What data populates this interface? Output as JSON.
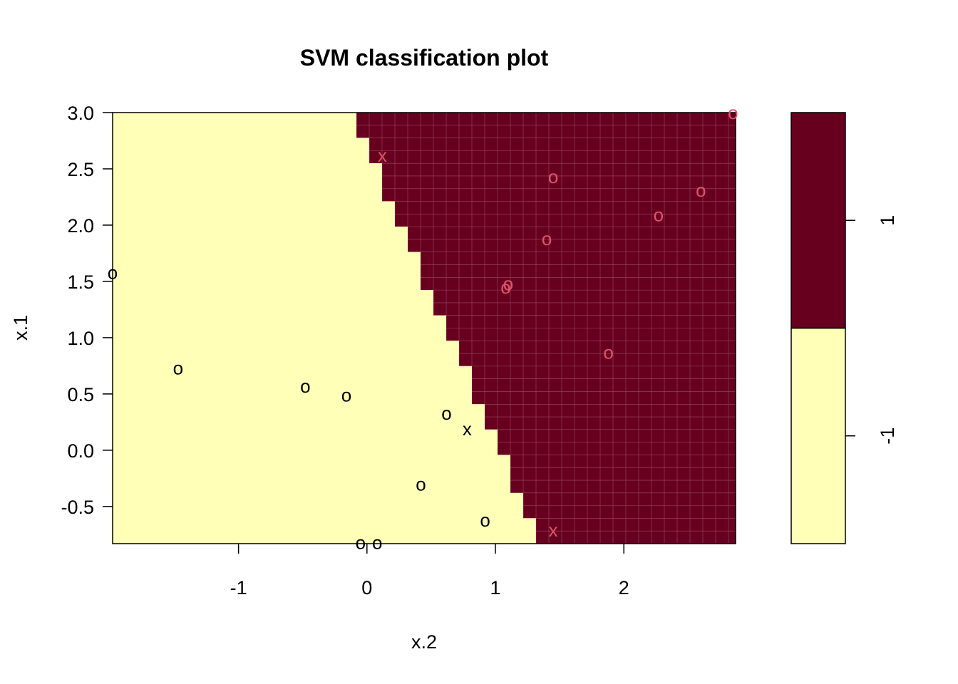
{
  "chart_data": {
    "type": "scatter",
    "title": "SVM classification plot",
    "xlabel": "x.2",
    "ylabel": "x.1",
    "xlim": [
      -1.98,
      2.87
    ],
    "ylim": [
      -0.83,
      3.0
    ],
    "x_ticks": [
      {
        "v": -1,
        "label": "-1"
      },
      {
        "v": 0,
        "label": "0"
      },
      {
        "v": 1,
        "label": "1"
      },
      {
        "v": 2,
        "label": "2"
      }
    ],
    "y_ticks": [
      {
        "v": -0.5,
        "label": "-0.5"
      },
      {
        "v": 0.0,
        "label": "0.0"
      },
      {
        "v": 0.5,
        "label": "0.5"
      },
      {
        "v": 1.0,
        "label": "1.0"
      },
      {
        "v": 1.5,
        "label": "1.5"
      },
      {
        "v": 2.0,
        "label": "2.0"
      },
      {
        "v": 2.5,
        "label": "2.5"
      },
      {
        "v": 3.0,
        "label": "3.0"
      }
    ],
    "regions": {
      "-1": "#FFFFB8",
      "1": "#67001F"
    },
    "decision_boundary": [
      {
        "x": -0.1,
        "y": 3.0
      },
      {
        "x": 1.38,
        "y": -0.83
      }
    ],
    "legend": {
      "levels": [
        {
          "label": "-1",
          "color": "#FFFFB8"
        },
        {
          "label": "1",
          "color": "#67001F"
        }
      ],
      "placement": "right"
    },
    "point_colors": {
      "-1": "#000000",
      "1": "#DF536B"
    },
    "points": [
      {
        "x": -1.98,
        "y": 1.58,
        "class": "-1",
        "glyph": "o"
      },
      {
        "x": -1.47,
        "y": 0.73,
        "class": "-1",
        "glyph": "o"
      },
      {
        "x": -0.48,
        "y": 0.57,
        "class": "-1",
        "glyph": "o"
      },
      {
        "x": -0.16,
        "y": 0.49,
        "class": "-1",
        "glyph": "o"
      },
      {
        "x": 0.62,
        "y": 0.33,
        "class": "-1",
        "glyph": "o"
      },
      {
        "x": 0.78,
        "y": 0.19,
        "class": "-1",
        "glyph": "x"
      },
      {
        "x": 0.42,
        "y": -0.3,
        "class": "-1",
        "glyph": "o"
      },
      {
        "x": 0.92,
        "y": -0.62,
        "class": "-1",
        "glyph": "o"
      },
      {
        "x": -0.05,
        "y": -0.82,
        "class": "-1",
        "glyph": "o"
      },
      {
        "x": 0.08,
        "y": -0.82,
        "class": "-1",
        "glyph": "o"
      },
      {
        "x": 0.12,
        "y": 2.62,
        "class": "1",
        "glyph": "x"
      },
      {
        "x": 1.45,
        "y": 2.43,
        "class": "1",
        "glyph": "o"
      },
      {
        "x": 2.6,
        "y": 2.31,
        "class": "1",
        "glyph": "o"
      },
      {
        "x": 2.27,
        "y": 2.09,
        "class": "1",
        "glyph": "o"
      },
      {
        "x": 1.4,
        "y": 1.88,
        "class": "1",
        "glyph": "o"
      },
      {
        "x": 1.1,
        "y": 1.48,
        "class": "1",
        "glyph": "o"
      },
      {
        "x": 1.08,
        "y": 1.45,
        "class": "1",
        "glyph": "o"
      },
      {
        "x": 1.88,
        "y": 0.87,
        "class": "1",
        "glyph": "o"
      },
      {
        "x": 2.85,
        "y": 3.0,
        "class": "1",
        "glyph": "o"
      },
      {
        "x": 1.45,
        "y": -0.71,
        "class": "1",
        "glyph": "x"
      }
    ]
  }
}
